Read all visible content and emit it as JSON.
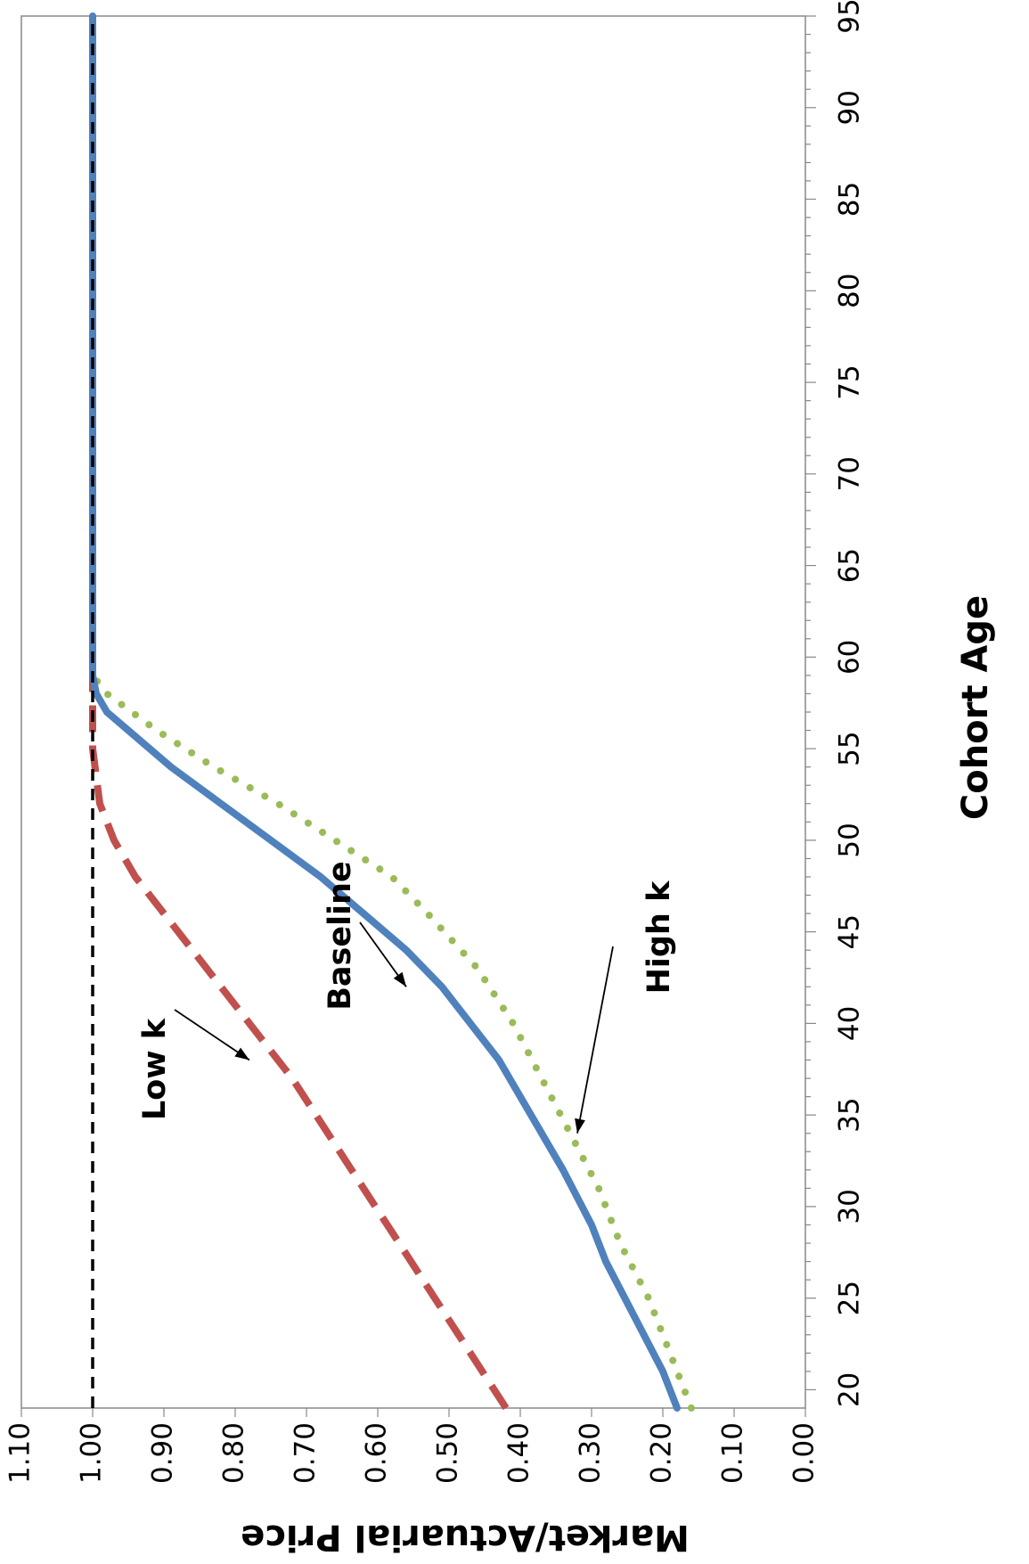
{
  "chart_data": {
    "type": "line",
    "orientation": "rotated-90-clockwise",
    "xlabel": "Cohort Age",
    "ylabel": "Market/Actuarial Price",
    "xlim": [
      19,
      95
    ],
    "ylim": [
      0.0,
      1.1
    ],
    "x_ticks": [
      "20",
      "25",
      "30",
      "35",
      "40",
      "45",
      "50",
      "55",
      "60",
      "65",
      "70",
      "75",
      "80",
      "85",
      "90",
      "95"
    ],
    "y_ticks": [
      "0.00",
      "0.10",
      "0.20",
      "0.30",
      "0.40",
      "0.50",
      "0.60",
      "0.70",
      "0.80",
      "0.90",
      "1.00",
      "1.10"
    ],
    "grid": false,
    "series": [
      {
        "key": "low",
        "color": "#C0504D",
        "style": "dashed",
        "x": [
          19,
          22,
          25,
          28,
          31,
          34,
          37,
          40,
          43,
          46,
          48,
          50,
          52,
          55,
          58,
          95
        ],
        "y": [
          0.42,
          0.47,
          0.52,
          0.57,
          0.62,
          0.67,
          0.72,
          0.78,
          0.84,
          0.9,
          0.94,
          0.97,
          0.99,
          1.0,
          1.0,
          1.0
        ]
      },
      {
        "key": "baseline",
        "color": "#4F81BD",
        "style": "solid",
        "x": [
          19,
          21,
          24,
          27,
          29,
          32,
          34,
          36,
          38,
          40,
          42,
          44,
          46,
          48,
          50,
          52,
          54,
          56,
          57,
          58,
          59,
          95
        ],
        "y": [
          0.18,
          0.2,
          0.24,
          0.28,
          0.3,
          0.34,
          0.37,
          0.4,
          0.43,
          0.47,
          0.51,
          0.56,
          0.62,
          0.68,
          0.75,
          0.82,
          0.89,
          0.95,
          0.98,
          0.995,
          1.0,
          1.0
        ]
      },
      {
        "key": "highk",
        "color": "#9BBB59",
        "style": "dotted",
        "x": [
          19,
          22,
          25,
          28,
          31,
          34,
          37,
          40,
          43,
          46,
          48,
          50,
          52,
          54,
          56,
          58,
          59,
          95
        ],
        "y": [
          0.16,
          0.19,
          0.22,
          0.26,
          0.29,
          0.33,
          0.37,
          0.41,
          0.46,
          0.53,
          0.58,
          0.66,
          0.74,
          0.83,
          0.91,
          0.98,
          1.0,
          1.0
        ]
      },
      {
        "key": "reference",
        "color": "#000000",
        "style": "dashed-thin",
        "x": [
          19,
          95
        ],
        "y": [
          1.0,
          1.0
        ]
      }
    ],
    "annotations": [
      {
        "text": "Low k",
        "arrow_to": [
          38,
          0.78
        ]
      },
      {
        "text": "Baseline",
        "arrow_to": [
          42,
          0.56
        ]
      },
      {
        "text": "High k",
        "arrow_to": [
          34,
          0.32
        ]
      }
    ]
  }
}
